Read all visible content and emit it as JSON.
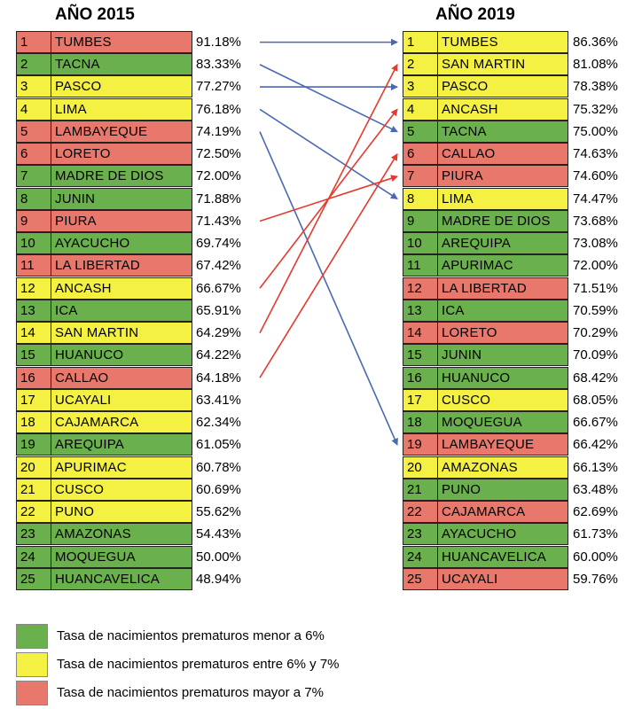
{
  "colors": {
    "green": "#6ab04c",
    "yellow": "#f4f142",
    "red": "#e8786c",
    "arrow_blue": "#4a68b4",
    "arrow_red": "#e53a2c"
  },
  "chart_data": {
    "type": "table",
    "left": {
      "title": "AÑO 2015",
      "rows": [
        {
          "rank": "1",
          "name": "TUMBES",
          "pct": "91.18%",
          "color": "red"
        },
        {
          "rank": "2",
          "name": "TACNA",
          "pct": "83.33%",
          "color": "green"
        },
        {
          "rank": "3",
          "name": "PASCO",
          "pct": "77.27%",
          "color": "yellow"
        },
        {
          "rank": "4",
          "name": "LIMA",
          "pct": "76.18%",
          "color": "yellow"
        },
        {
          "rank": "5",
          "name": "LAMBAYEQUE",
          "pct": "74.19%",
          "color": "red"
        },
        {
          "rank": "6",
          "name": "LORETO",
          "pct": "72.50%",
          "color": "red"
        },
        {
          "rank": "7",
          "name": "MADRE DE DIOS",
          "pct": "72.00%",
          "color": "green"
        },
        {
          "rank": "8",
          "name": "JUNIN",
          "pct": "71.88%",
          "color": "green"
        },
        {
          "rank": "9",
          "name": "PIURA",
          "pct": "71.43%",
          "color": "red"
        },
        {
          "rank": "10",
          "name": "AYACUCHO",
          "pct": "69.74%",
          "color": "green"
        },
        {
          "rank": "11",
          "name": "LA LIBERTAD",
          "pct": "67.42%",
          "color": "red"
        },
        {
          "rank": "12",
          "name": "ANCASH",
          "pct": "66.67%",
          "color": "yellow"
        },
        {
          "rank": "13",
          "name": "ICA",
          "pct": "65.91%",
          "color": "green"
        },
        {
          "rank": "14",
          "name": "SAN MARTIN",
          "pct": "64.29%",
          "color": "yellow"
        },
        {
          "rank": "15",
          "name": "HUANUCO",
          "pct": "64.22%",
          "color": "green"
        },
        {
          "rank": "16",
          "name": "CALLAO",
          "pct": "64.18%",
          "color": "red"
        },
        {
          "rank": "17",
          "name": "UCAYALI",
          "pct": "63.41%",
          "color": "yellow"
        },
        {
          "rank": "18",
          "name": "CAJAMARCA",
          "pct": "62.34%",
          "color": "yellow"
        },
        {
          "rank": "19",
          "name": "AREQUIPA",
          "pct": "61.05%",
          "color": "green"
        },
        {
          "rank": "20",
          "name": "APURIMAC",
          "pct": "60.78%",
          "color": "yellow"
        },
        {
          "rank": "21",
          "name": "CUSCO",
          "pct": "60.69%",
          "color": "yellow"
        },
        {
          "rank": "22",
          "name": "PUNO",
          "pct": "55.62%",
          "color": "yellow"
        },
        {
          "rank": "23",
          "name": "AMAZONAS",
          "pct": "54.43%",
          "color": "green"
        },
        {
          "rank": "24",
          "name": "MOQUEGUA",
          "pct": "50.00%",
          "color": "green"
        },
        {
          "rank": "25",
          "name": "HUANCAVELICA",
          "pct": "48.94%",
          "color": "green"
        }
      ]
    },
    "right": {
      "title": "AÑO 2019",
      "rows": [
        {
          "rank": "1",
          "name": "TUMBES",
          "pct": "86.36%",
          "color": "yellow"
        },
        {
          "rank": "2",
          "name": "SAN MARTIN",
          "pct": "81.08%",
          "color": "yellow"
        },
        {
          "rank": "3",
          "name": "PASCO",
          "pct": "78.38%",
          "color": "yellow"
        },
        {
          "rank": "4",
          "name": "ANCASH",
          "pct": "75.32%",
          "color": "yellow"
        },
        {
          "rank": "5",
          "name": "TACNA",
          "pct": "75.00%",
          "color": "green"
        },
        {
          "rank": "6",
          "name": "CALLAO",
          "pct": "74.63%",
          "color": "red"
        },
        {
          "rank": "7",
          "name": "PIURA",
          "pct": "74.60%",
          "color": "red"
        },
        {
          "rank": "8",
          "name": "LIMA",
          "pct": "74.47%",
          "color": "yellow"
        },
        {
          "rank": "9",
          "name": "MADRE DE DIOS",
          "pct": "73.68%",
          "color": "green"
        },
        {
          "rank": "10",
          "name": "AREQUIPA",
          "pct": "73.08%",
          "color": "green"
        },
        {
          "rank": "11",
          "name": "APURIMAC",
          "pct": "72.00%",
          "color": "green"
        },
        {
          "rank": "12",
          "name": "LA LIBERTAD",
          "pct": "71.51%",
          "color": "red"
        },
        {
          "rank": "13",
          "name": "ICA",
          "pct": "70.59%",
          "color": "green"
        },
        {
          "rank": "14",
          "name": "LORETO",
          "pct": "70.29%",
          "color": "red"
        },
        {
          "rank": "15",
          "name": "JUNIN",
          "pct": "70.09%",
          "color": "green"
        },
        {
          "rank": "16",
          "name": "HUANUCO",
          "pct": "68.42%",
          "color": "green"
        },
        {
          "rank": "17",
          "name": "CUSCO",
          "pct": "68.05%",
          "color": "yellow"
        },
        {
          "rank": "18",
          "name": "MOQUEGUA",
          "pct": "66.67%",
          "color": "green"
        },
        {
          "rank": "19",
          "name": "LAMBAYEQUE",
          "pct": "66.42%",
          "color": "red"
        },
        {
          "rank": "20",
          "name": "AMAZONAS",
          "pct": "66.13%",
          "color": "yellow"
        },
        {
          "rank": "21",
          "name": "PUNO",
          "pct": "63.48%",
          "color": "green"
        },
        {
          "rank": "22",
          "name": "CAJAMARCA",
          "pct": "62.69%",
          "color": "red"
        },
        {
          "rank": "23",
          "name": "AYACUCHO",
          "pct": "61.73%",
          "color": "green"
        },
        {
          "rank": "24",
          "name": "HUANCAVELICA",
          "pct": "60.00%",
          "color": "green"
        },
        {
          "rank": "25",
          "name": "UCAYALI",
          "pct": "59.76%",
          "color": "red"
        }
      ]
    },
    "arrows": [
      {
        "from": 1,
        "to": 1,
        "color": "blue"
      },
      {
        "from": 2,
        "to": 5,
        "color": "blue"
      },
      {
        "from": 3,
        "to": 3,
        "color": "blue"
      },
      {
        "from": 4,
        "to": 8,
        "color": "blue"
      },
      {
        "from": 5,
        "to": 19,
        "color": "blue"
      },
      {
        "from": 9,
        "to": 7,
        "color": "red"
      },
      {
        "from": 12,
        "to": 4,
        "color": "red"
      },
      {
        "from": 14,
        "to": 2,
        "color": "red"
      },
      {
        "from": 16,
        "to": 6,
        "color": "red"
      }
    ]
  },
  "legend": [
    {
      "label": "Tasa de nacimientos prematuros menor a 6%",
      "color": "green"
    },
    {
      "label": "Tasa de nacimientos prematuros entre 6% y 7%",
      "color": "yellow"
    },
    {
      "label": "Tasa de nacimientos prematuros mayor a 7%",
      "color": "red"
    }
  ]
}
